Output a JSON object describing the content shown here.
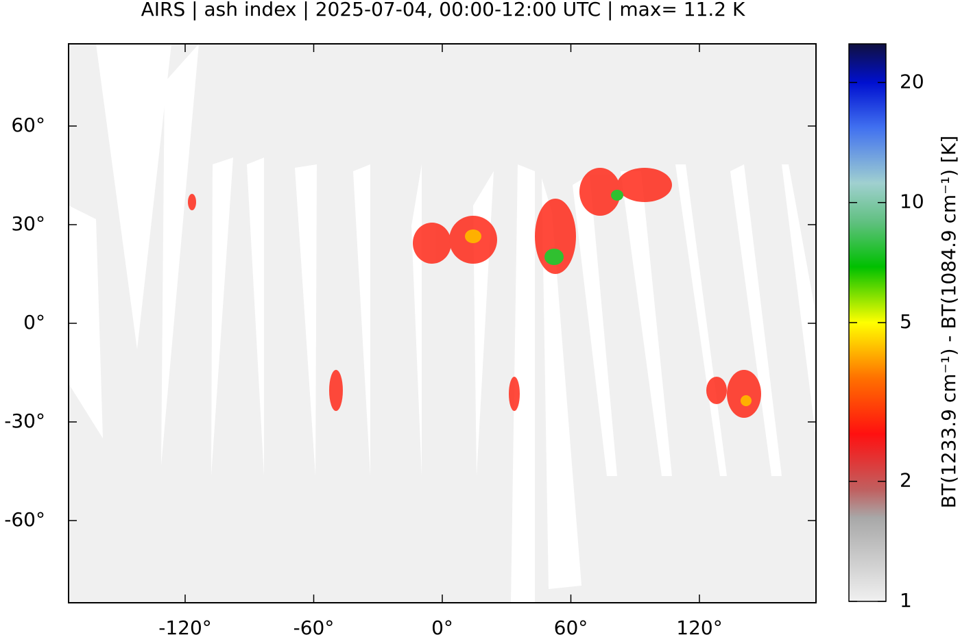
{
  "chart_data": {
    "type": "map",
    "title": "AIRS | ash index | 2025-07-04, 00:00-12:00 UTC | max= 11.2 K",
    "xlim": [
      -174.4,
      174.4
    ],
    "ylim": [
      -85,
      85
    ],
    "xticks": [
      {
        "value": -120,
        "label": "-120°"
      },
      {
        "value": -60,
        "label": "-60°"
      },
      {
        "value": 0,
        "label": "0°"
      },
      {
        "value": 60,
        "label": "60°"
      },
      {
        "value": 120,
        "label": "120°"
      }
    ],
    "yticks": [
      {
        "value": 60,
        "label": "60°"
      },
      {
        "value": 30,
        "label": "30°"
      },
      {
        "value": 0,
        "label": "0°"
      },
      {
        "value": -30,
        "label": "-30°"
      },
      {
        "value": -60,
        "label": "-60°"
      }
    ],
    "colorbar": {
      "label": "BT(1233.9 cm⁻¹) - BT(1084.9 cm⁻¹) [K]",
      "lim": [
        1,
        25
      ],
      "ticks": [
        1,
        2,
        5,
        10,
        20
      ],
      "log": true
    }
  }
}
